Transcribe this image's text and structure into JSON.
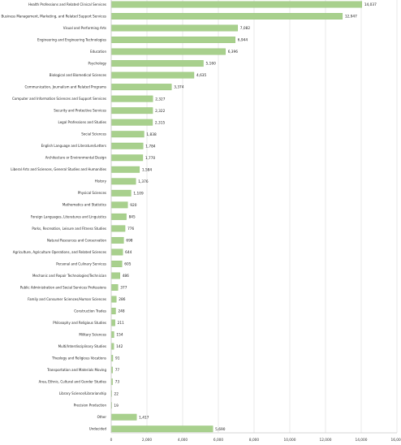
{
  "chart_data": {
    "type": "bar",
    "orientation": "horizontal",
    "title": "",
    "xlabel": "",
    "ylabel": "",
    "xlim": [
      0,
      16000
    ],
    "xticks": [
      0,
      2000,
      4000,
      6000,
      8000,
      10000,
      12000,
      14000,
      16000
    ],
    "xtick_labels": [
      "0",
      "2,000",
      "4,000",
      "6,000",
      "8,000",
      "10,000",
      "12,000",
      "14,000",
      "16,000"
    ],
    "grid": "vertical",
    "bar_color": "#a8d08d",
    "bar_edge_color": "#8fbf70",
    "categories": [
      "Health Professions and Related Clinical Services",
      "Business Management, Marketing, and Related Support Services",
      "Visual and Performing Arts",
      "Engineering and Engineering Technologies",
      "Education",
      "Psychology",
      "Biological and Biomedical Sciences",
      "Communication, Journalism and Related Programs",
      "Computer and Information Sciences and Support Services",
      "Security and Protective Services",
      "Legal Professions and Studies",
      "Social Sciences",
      "English Language and Literature/Letters",
      "Architecture or Environmental Design",
      "Liberal Arts and Sciences, General Studies and Humanities",
      "History",
      "Physical Sciences",
      "Mathematics and Statistics",
      "Foreign Languages, Literatures and Linguistics",
      "Parks, Recreation, Leisure and Fitness Studies",
      "Natural Resources and Conservation",
      "Agriculture, Agriculture Operations, and Related Sciences",
      "Personal and Culinary Services",
      "Mechanic and Repair Technologies/Technician",
      "Public Administration and Social Services Professions",
      "Family and Consumer Sciences/Human Sciences",
      "Construction Trades",
      "Philosophy and Religious Studies",
      "Military Sciences",
      "Multi/Interdisciplinary Studies",
      "Theology and Religious Vocations",
      "Transportation and Materials Moving",
      "Area, Ethnic, Cultural and Gender Studies",
      "Library Science/Librarianship",
      "Precision Production",
      "Other",
      "Undecided"
    ],
    "values": [
      14037,
      12947,
      7082,
      6944,
      6396,
      5160,
      4635,
      3374,
      2327,
      2322,
      2315,
      1838,
      1784,
      1770,
      1584,
      1376,
      1109,
      920,
      845,
      776,
      698,
      644,
      605,
      486,
      377,
      286,
      248,
      211,
      154,
      142,
      91,
      77,
      73,
      22,
      19,
      1417,
      5690
    ],
    "value_labels": [
      "14,037",
      "12,947",
      "7,082",
      "6,944",
      "6,396",
      "5,160",
      "4,635",
      "3,374",
      "2,327",
      "2,322",
      "2,315",
      "1,838",
      "1,784",
      "1,770",
      "1,584",
      "1,376",
      "1,109",
      "920",
      "845",
      "776",
      "698",
      "644",
      "605",
      "486",
      "377",
      "286",
      "248",
      "211",
      "154",
      "142",
      "91",
      "77",
      "73",
      "22",
      "19",
      "1,417",
      "5,690"
    ]
  }
}
